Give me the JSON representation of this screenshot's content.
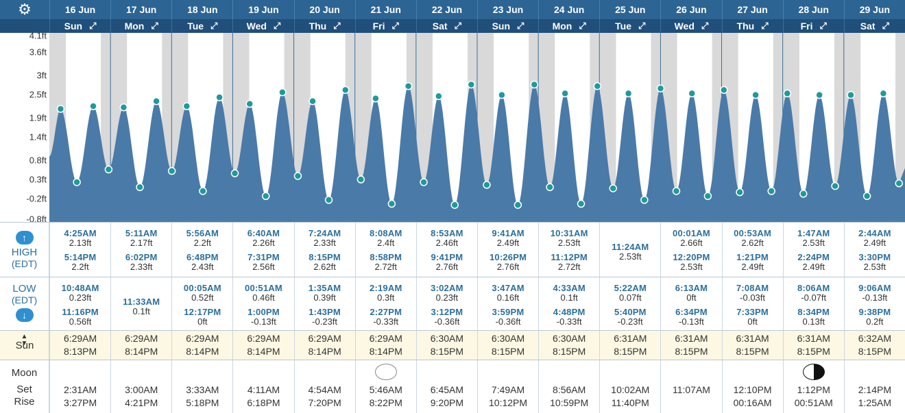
{
  "header": {
    "settings_icon": "gear-icon",
    "dates": [
      "16 Jun",
      "17 Jun",
      "18 Jun",
      "19 Jun",
      "20 Jun",
      "21 Jun",
      "22 Jun",
      "23 Jun",
      "24 Jun",
      "25 Jun",
      "26 Jun",
      "27 Jun",
      "28 Jun",
      "29 Jun"
    ],
    "days": [
      "Sun",
      "Mon",
      "Tue",
      "Wed",
      "Thu",
      "Fri",
      "Sat",
      "Sun",
      "Mon",
      "Tue",
      "Wed",
      "Thu",
      "Fri",
      "Sat"
    ],
    "expand_icon": "expand-arrows-icon"
  },
  "labels": {
    "high": "HIGH",
    "high_tz": "(EDT)",
    "low": "LOW",
    "low_tz": "(EDT)",
    "sun": "Sun",
    "moon": "Moon",
    "set": "Set",
    "rise": "Rise"
  },
  "tides": {
    "high": [
      [
        [
          "4:25AM",
          "2.13ft"
        ],
        [
          "5:14PM",
          "2.2ft"
        ]
      ],
      [
        [
          "5:11AM",
          "2.17ft"
        ],
        [
          "6:02PM",
          "2.33ft"
        ]
      ],
      [
        [
          "5:56AM",
          "2.2ft"
        ],
        [
          "6:48PM",
          "2.43ft"
        ]
      ],
      [
        [
          "6:40AM",
          "2.26ft"
        ],
        [
          "7:31PM",
          "2.56ft"
        ]
      ],
      [
        [
          "7:24AM",
          "2.33ft"
        ],
        [
          "8:15PM",
          "2.62ft"
        ]
      ],
      [
        [
          "8:08AM",
          "2.4ft"
        ],
        [
          "8:58PM",
          "2.72ft"
        ]
      ],
      [
        [
          "8:53AM",
          "2.46ft"
        ],
        [
          "9:41PM",
          "2.76ft"
        ]
      ],
      [
        [
          "9:41AM",
          "2.49ft"
        ],
        [
          "10:26PM",
          "2.76ft"
        ]
      ],
      [
        [
          "10:31AM",
          "2.53ft"
        ],
        [
          "11:12PM",
          "2.72ft"
        ]
      ],
      [
        [
          "11:24AM",
          "2.53ft"
        ]
      ],
      [
        [
          "00:01AM",
          "2.66ft"
        ],
        [
          "12:20PM",
          "2.53ft"
        ]
      ],
      [
        [
          "00:53AM",
          "2.62ft"
        ],
        [
          "1:21PM",
          "2.49ft"
        ]
      ],
      [
        [
          "1:47AM",
          "2.53ft"
        ],
        [
          "2:24PM",
          "2.49ft"
        ]
      ],
      [
        [
          "2:44AM",
          "2.49ft"
        ],
        [
          "3:30PM",
          "2.53ft"
        ]
      ]
    ],
    "low": [
      [
        [
          "10:48AM",
          "0.23ft"
        ],
        [
          "11:16PM",
          "0.56ft"
        ]
      ],
      [
        [
          "11:33AM",
          "0.1ft"
        ]
      ],
      [
        [
          "00:05AM",
          "0.52ft"
        ],
        [
          "12:17PM",
          "0ft"
        ]
      ],
      [
        [
          "00:51AM",
          "0.46ft"
        ],
        [
          "1:00PM",
          "-0.13ft"
        ]
      ],
      [
        [
          "1:35AM",
          "0.39ft"
        ],
        [
          "1:43PM",
          "-0.23ft"
        ]
      ],
      [
        [
          "2:19AM",
          "0.3ft"
        ],
        [
          "2:27PM",
          "-0.33ft"
        ]
      ],
      [
        [
          "3:02AM",
          "0.23ft"
        ],
        [
          "3:12PM",
          "-0.36ft"
        ]
      ],
      [
        [
          "3:47AM",
          "0.16ft"
        ],
        [
          "3:59PM",
          "-0.36ft"
        ]
      ],
      [
        [
          "4:33AM",
          "0.1ft"
        ],
        [
          "4:48PM",
          "-0.33ft"
        ]
      ],
      [
        [
          "5:22AM",
          "0.07ft"
        ],
        [
          "5:40PM",
          "-0.23ft"
        ]
      ],
      [
        [
          "6:13AM",
          "0ft"
        ],
        [
          "6:34PM",
          "-0.13ft"
        ]
      ],
      [
        [
          "7:08AM",
          "-0.03ft"
        ],
        [
          "7:33PM",
          "0ft"
        ]
      ],
      [
        [
          "8:06AM",
          "-0.07ft"
        ],
        [
          "8:34PM",
          "0.13ft"
        ]
      ],
      [
        [
          "9:06AM",
          "-0.13ft"
        ],
        [
          "9:38PM",
          "0.2ft"
        ]
      ]
    ]
  },
  "sun": {
    "rise": [
      "6:29AM",
      "6:29AM",
      "6:29AM",
      "6:29AM",
      "6:29AM",
      "6:29AM",
      "6:30AM",
      "6:30AM",
      "6:30AM",
      "6:31AM",
      "6:31AM",
      "6:31AM",
      "6:31AM",
      "6:32AM"
    ],
    "set": [
      "8:13PM",
      "8:14PM",
      "8:14PM",
      "8:14PM",
      "8:14PM",
      "8:14PM",
      "8:15PM",
      "8:15PM",
      "8:15PM",
      "8:15PM",
      "8:15PM",
      "8:15PM",
      "8:15PM",
      "8:15PM"
    ]
  },
  "moon": {
    "set": [
      "2:31AM",
      "3:00AM",
      "3:33AM",
      "4:11AM",
      "4:54AM",
      "5:46AM",
      "6:45AM",
      "7:49AM",
      "8:56AM",
      "10:02AM",
      "11:07AM",
      "12:10PM",
      "1:12PM",
      "2:14PM"
    ],
    "rise": [
      "3:27PM",
      "4:21PM",
      "5:18PM",
      "6:18PM",
      "7:20PM",
      "8:22PM",
      "9:20PM",
      "10:12PM",
      "10:59PM",
      "11:40PM",
      "",
      "00:16AM",
      "00:51AM",
      "1:25AM"
    ],
    "phases": {
      "5": "full-moon-icon",
      "12": "last-quarter-moon-icon"
    }
  },
  "colors": {
    "header_top": "#2c6493",
    "header_days": "#1f4f7a",
    "tide_fill": "#4a7aa8",
    "tide_marker": "#1f9a9a",
    "night_shade": "#d9d9d9",
    "sun_row_bg": "#fdf8e3",
    "label_blue": "#2a6f9e"
  },
  "chart_data": {
    "type": "area",
    "title": "",
    "xlabel": "",
    "ylabel": "",
    "yticks": [
      "4.1ft",
      "3.6ft",
      "3ft",
      "2.5ft",
      "1.9ft",
      "1.4ft",
      "0.8ft",
      "0.3ft",
      "-0.2ft",
      "-0.8ft"
    ],
    "ylim": [
      -0.8,
      4.1
    ],
    "x_range_days": [
      "16 Jun",
      "29 Jun"
    ],
    "series": [
      {
        "points": [
          [
            0.0,
            0.9
          ],
          [
            0.184,
            2.13
          ],
          [
            0.45,
            0.23
          ],
          [
            0.718,
            2.2
          ],
          [
            0.969,
            0.56
          ],
          [
            1.216,
            2.17
          ],
          [
            1.481,
            0.1
          ],
          [
            1.751,
            2.33
          ],
          [
            2.004,
            0.52
          ],
          [
            2.247,
            2.2
          ],
          [
            2.512,
            0.0
          ],
          [
            2.783,
            2.43
          ],
          [
            3.035,
            0.46
          ],
          [
            3.278,
            2.26
          ],
          [
            3.542,
            -0.13
          ],
          [
            3.813,
            2.56
          ],
          [
            4.066,
            0.39
          ],
          [
            4.308,
            2.33
          ],
          [
            4.572,
            -0.23
          ],
          [
            4.844,
            2.62
          ],
          [
            5.097,
            0.3
          ],
          [
            5.339,
            2.4
          ],
          [
            5.602,
            -0.33
          ],
          [
            5.874,
            2.72
          ],
          [
            6.126,
            0.23
          ],
          [
            6.37,
            2.46
          ],
          [
            6.633,
            -0.36
          ],
          [
            6.903,
            2.76
          ],
          [
            7.157,
            0.16
          ],
          [
            7.403,
            2.49
          ],
          [
            7.666,
            -0.36
          ],
          [
            7.935,
            2.76
          ],
          [
            8.19,
            0.1
          ],
          [
            8.438,
            2.53
          ],
          [
            8.7,
            -0.33
          ],
          [
            8.967,
            2.72
          ],
          [
            9.224,
            0.07
          ],
          [
            9.475,
            2.53
          ],
          [
            9.736,
            -0.23
          ],
          [
            10.001,
            2.66
          ],
          [
            10.259,
            0.0
          ],
          [
            10.514,
            2.53
          ],
          [
            10.774,
            -0.13
          ],
          [
            11.037,
            2.62
          ],
          [
            11.297,
            -0.03
          ],
          [
            11.556,
            2.49
          ],
          [
            11.815,
            0.0
          ],
          [
            12.074,
            2.53
          ],
          [
            12.338,
            -0.07
          ],
          [
            12.6,
            2.49
          ],
          [
            12.857,
            0.13
          ],
          [
            13.114,
            2.49
          ],
          [
            13.379,
            -0.13
          ],
          [
            13.646,
            2.53
          ],
          [
            13.902,
            0.2
          ]
        ],
        "units": "ft"
      }
    ]
  }
}
